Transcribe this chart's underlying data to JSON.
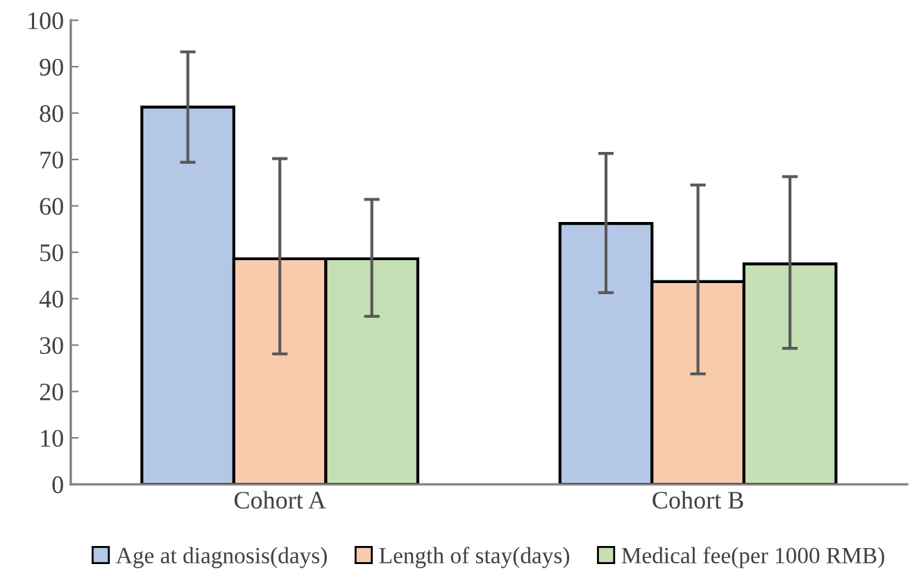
{
  "chart_data": {
    "type": "bar",
    "categories": [
      "Cohort A",
      "Cohort B"
    ],
    "series": [
      {
        "name": "Age at diagnosis(days)",
        "color": "#b4c7e7",
        "values": [
          81.3,
          56.2
        ],
        "errors": [
          [
            69.4,
            93.2
          ],
          [
            41.3,
            71.3
          ]
        ]
      },
      {
        "name": "Length of stay(days)",
        "color": "#f8cbad",
        "values": [
          48.6,
          43.7
        ],
        "errors": [
          [
            28.1,
            70.2
          ],
          [
            23.8,
            64.5
          ]
        ]
      },
      {
        "name": "Medical fee(per 1000 RMB)",
        "color": "#c5e0b4",
        "values": [
          48.6,
          47.5
        ],
        "errors": [
          [
            36.2,
            61.4
          ],
          [
            29.3,
            66.3
          ]
        ]
      }
    ],
    "ylim": [
      0,
      100
    ],
    "yticks": [
      0,
      10,
      20,
      30,
      40,
      50,
      60,
      70,
      80,
      90,
      100
    ],
    "grid": false,
    "legend": "bottom"
  }
}
